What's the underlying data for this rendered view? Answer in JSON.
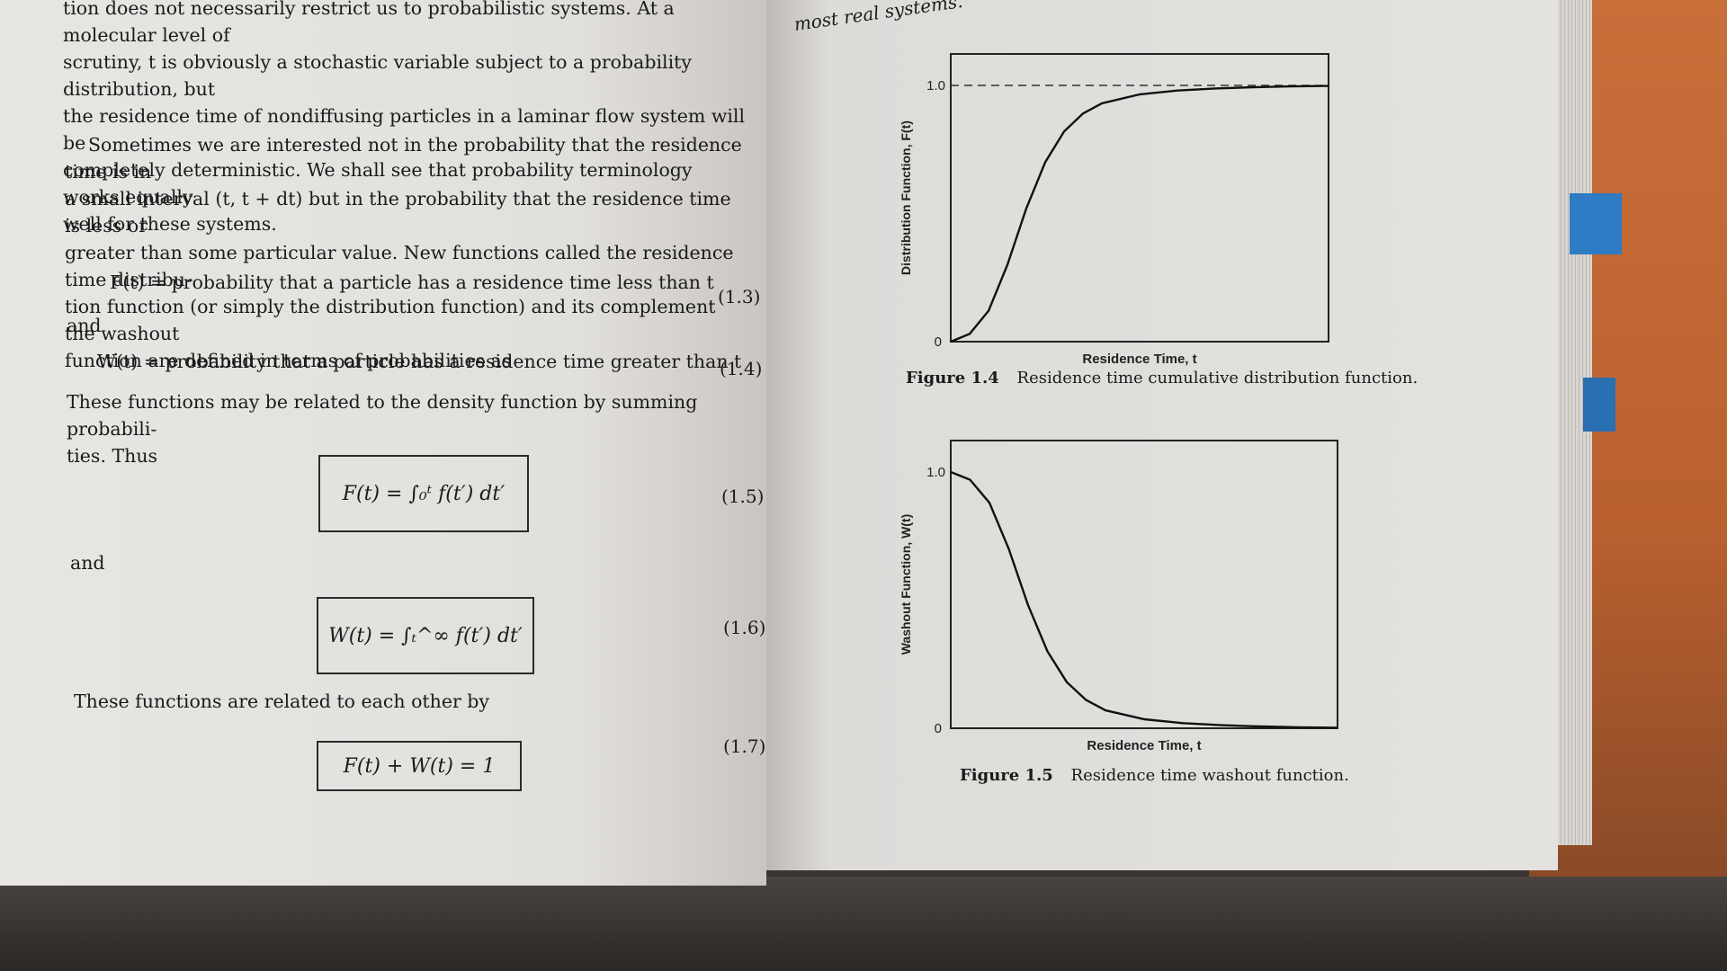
{
  "left_page": {
    "para1": [
      "tion does not necessarily restrict us to probabilistic systems. At a molecular level of",
      "scrutiny, t is obviously a stochastic variable subject to a probability distribution, but",
      "the residence time of nondiffusing particles in a laminar flow system will be",
      "completely deterministic. We shall see that probability terminology works equally",
      "well for these systems."
    ],
    "para2": [
      "Sometimes we are interested not in the probability that the residence time is in",
      "a small interval (t, t + dt) but in the probability that the residence time is less or",
      "greater than some particular value. New functions called the residence time distribu-",
      "tion function (or simply the distribution function) and its complement the washout",
      "function are defined in terms of probabilities as"
    ],
    "eq13_text": "F(t) = probability that a particle has a residence time less than t",
    "eq13_num": "(1.3)",
    "and1": "and",
    "eq14_text": "W(t) = probability that a particle has a residence time greater than t",
    "eq14_num": "(1.4)",
    "para3": [
      "These functions may be related to the density function by summing probabili-",
      "ties. Thus"
    ],
    "eq15_text": "F(t) = ∫₀ᵗ f(t′) dt′",
    "eq15_num": "(1.5)",
    "and2": "and",
    "eq16_text": "W(t) = ∫ₜ^∞ f(t′) dt′",
    "eq16_num": "(1.6)",
    "para4": "These functions are related to each other by",
    "eq17_text": "F(t) + W(t) = 1",
    "eq17_num": "(1.7)"
  },
  "right_page": {
    "top_text": "most real systems.",
    "fig14": {
      "label": "Figure 1.4",
      "caption": "Residence time cumulative distribution function."
    },
    "fig15": {
      "label": "Figure 1.5",
      "caption": "Residence time washout function."
    }
  },
  "chart_data": [
    {
      "type": "line",
      "ylabel": "Distribution Function, F(t)",
      "xlabel": "Residence Time, t",
      "ylim": [
        0,
        1.0
      ],
      "y_ticks": [
        "0",
        "1.0"
      ],
      "reference_line": {
        "y": 1.0,
        "style": "dashed"
      },
      "series": [
        {
          "x": [
            0,
            0.05,
            0.1,
            0.15,
            0.2,
            0.25,
            0.3,
            0.35,
            0.4,
            0.5,
            0.6,
            0.7,
            0.8,
            0.9,
            1.0
          ],
          "values": [
            0,
            0.03,
            0.12,
            0.3,
            0.52,
            0.7,
            0.82,
            0.89,
            0.93,
            0.965,
            0.98,
            0.988,
            0.993,
            0.996,
            0.998
          ]
        }
      ]
    },
    {
      "type": "line",
      "ylabel": "Washout Function, W(t)",
      "xlabel": "Residence Time, t",
      "ylim": [
        0,
        1.0
      ],
      "y_ticks": [
        "0",
        "1.0"
      ],
      "series": [
        {
          "x": [
            0,
            0.05,
            0.1,
            0.15,
            0.2,
            0.25,
            0.3,
            0.35,
            0.4,
            0.5,
            0.6,
            0.7,
            0.8,
            0.9,
            1.0
          ],
          "values": [
            1.0,
            0.97,
            0.88,
            0.7,
            0.48,
            0.3,
            0.18,
            0.11,
            0.07,
            0.035,
            0.02,
            0.012,
            0.007,
            0.004,
            0.002
          ]
        }
      ]
    }
  ]
}
